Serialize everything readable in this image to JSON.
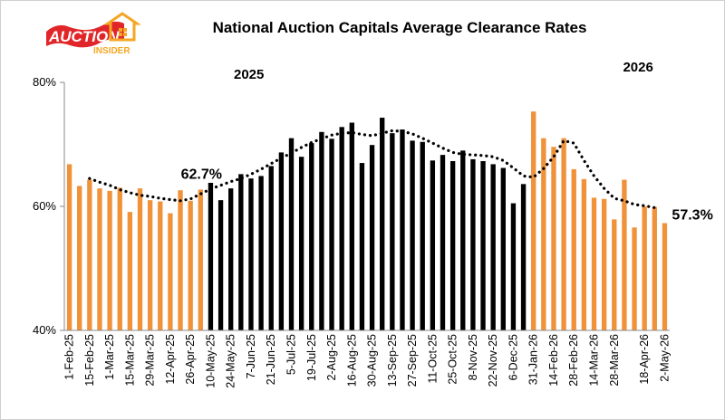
{
  "logo": {
    "line1": "AUCTION",
    "line2": "INSIDER"
  },
  "chart_data": {
    "type": "bar",
    "title": "National Auction Capitals Average Clearance Rates",
    "xlabel": "",
    "ylabel": "",
    "ylim": [
      40,
      80
    ],
    "yticks": [
      "40%",
      "60%",
      "80%"
    ],
    "grid": false,
    "legend": "none",
    "colors": {
      "2025_early": "#F0923A",
      "2025": "#000000",
      "2026": "#F0923A",
      "trend": "#000000"
    },
    "year_labels": [
      "2025",
      "2026"
    ],
    "annotations": [
      "62.7%",
      "57.3%"
    ],
    "x_tick_labels": [
      "1-Feb-25",
      "15-Feb-25",
      "1-Mar-25",
      "15-Mar-25",
      "29-Mar-25",
      "12-Apr-25",
      "26-Apr-25",
      "10-May-25",
      "24-May-25",
      "7-Jun-25",
      "21-Jun-25",
      "5-Jul-25",
      "19-Jul-25",
      "2-Aug-25",
      "16-Aug-25",
      "30-Aug-25",
      "13-Sep-25",
      "27-Sep-25",
      "11-Oct-25",
      "25-Oct-25",
      "8-Nov-25",
      "22-Nov-25",
      "6-Dec-25",
      "31-Jan-26",
      "14-Feb-26",
      "28-Feb-26",
      "14-Mar-26",
      "28-Mar-26",
      "18-Apr-26",
      "2-May-26"
    ],
    "categories": [
      "1-Feb-25",
      "8-Feb-25",
      "15-Feb-25",
      "22-Feb-25",
      "1-Mar-25",
      "8-Mar-25",
      "15-Mar-25",
      "22-Mar-25",
      "29-Mar-25",
      "5-Apr-25",
      "12-Apr-25",
      "19-Apr-25",
      "26-Apr-25",
      "3-May-25",
      "10-May-25",
      "17-May-25",
      "24-May-25",
      "31-May-25",
      "7-Jun-25",
      "14-Jun-25",
      "21-Jun-25",
      "28-Jun-25",
      "5-Jul-25",
      "12-Jul-25",
      "19-Jul-25",
      "26-Jul-25",
      "2-Aug-25",
      "9-Aug-25",
      "16-Aug-25",
      "23-Aug-25",
      "30-Aug-25",
      "6-Sep-25",
      "13-Sep-25",
      "20-Sep-25",
      "27-Sep-25",
      "4-Oct-25",
      "11-Oct-25",
      "18-Oct-25",
      "25-Oct-25",
      "1-Nov-25",
      "8-Nov-25",
      "15-Nov-25",
      "22-Nov-25",
      "29-Nov-25",
      "6-Dec-25",
      "13-Dec-25",
      "31-Jan-26",
      "7-Feb-26",
      "14-Feb-26",
      "21-Feb-26",
      "28-Feb-26",
      "7-Mar-26",
      "14-Mar-26",
      "21-Mar-26",
      "28-Mar-26",
      "4-Apr-26",
      "11-Apr-26",
      "18-Apr-26",
      "25-Apr-26",
      "2-May-26"
    ],
    "series": [
      {
        "values": [
          66.8,
          63.3,
          64.3,
          62.9,
          62.5,
          63.0,
          59.1,
          62.9,
          61.0,
          60.8,
          58.9,
          62.6,
          60.9,
          62.7,
          63.8,
          61.0,
          62.9,
          65.2,
          64.5,
          64.9,
          66.5,
          68.7,
          71.0,
          68.0,
          70.2,
          72.0,
          70.9,
          72.8,
          73.5,
          67.0,
          69.9,
          74.3,
          71.8,
          72.4,
          70.6,
          70.4,
          67.4,
          68.3,
          67.3,
          69.0,
          67.6,
          67.3,
          66.8,
          66.2,
          60.5,
          63.6,
          75.3,
          71.0,
          69.6,
          71.0,
          66.0,
          64.4,
          61.4,
          61.2,
          57.9,
          64.3,
          56.6,
          60.0,
          59.9,
          57.3
        ]
      }
    ],
    "trend": [
      null,
      null,
      64.5,
      63.9,
      63.4,
      62.7,
      62.2,
      61.8,
      61.6,
      61.3,
      61.1,
      60.9,
      61.2,
      62.0,
      62.8,
      63.4,
      64.0,
      64.5,
      65.2,
      66.0,
      66.9,
      67.8,
      68.6,
      69.5,
      70.3,
      70.9,
      71.5,
      71.8,
      71.9,
      71.6,
      71.4,
      71.8,
      72.2,
      72.1,
      71.7,
      71.0,
      70.2,
      69.4,
      68.7,
      68.4,
      68.3,
      68.2,
      68.0,
      67.4,
      66.2,
      64.9,
      64.7,
      66.1,
      68.0,
      70.6,
      70.2,
      67.4,
      64.9,
      62.9,
      61.3,
      60.9,
      60.3,
      60.1,
      59.8,
      null
    ]
  }
}
